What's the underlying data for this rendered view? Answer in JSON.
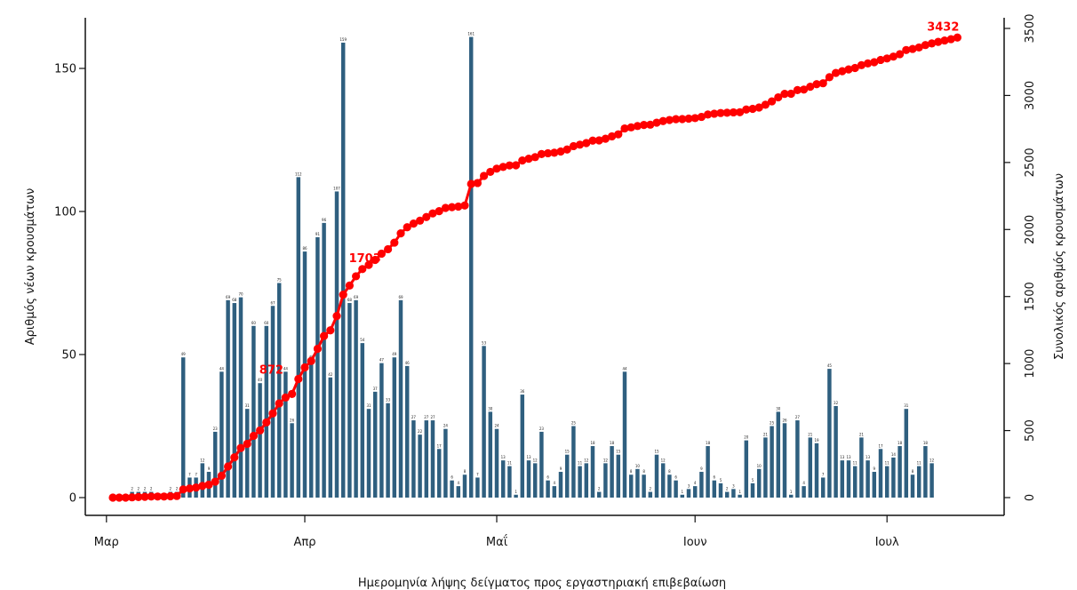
{
  "chart_data": {
    "type": "bar",
    "title": "",
    "xlabel": "Ημερομηνία λήψης δείγματος προς εργαστηριακή επιβεβαίωση",
    "ylabel": "Αριθμός νέων κρουσμάτων",
    "y2label": "Συνολικός αριθμός κρουσμάτων",
    "ylim": [
      0,
      165
    ],
    "y2lim": [
      0,
      3500
    ],
    "yticks": [
      "0",
      "50",
      "100",
      "150"
    ],
    "y2ticks": [
      "0",
      "500",
      "1000",
      "1500",
      "2000",
      "2500",
      "3000",
      "3500"
    ],
    "x_tick_labels": [
      {
        "label": "Μαρ",
        "day": 3
      },
      {
        "label": "Απρ",
        "day": 34
      },
      {
        "label": "Μαΐ",
        "day": 64
      },
      {
        "label": "Ιουν",
        "day": 95
      },
      {
        "label": "Ιουλ",
        "day": 125
      }
    ],
    "series": [
      {
        "kind": "bars",
        "color": "#2f5f7f",
        "start_day": 7,
        "values": [
          2,
          2,
          2,
          2,
          0,
          0,
          2,
          2,
          49,
          7,
          7,
          12,
          9,
          23,
          44,
          69,
          68,
          70,
          31,
          60,
          40,
          60,
          67,
          75,
          44,
          26,
          112,
          86,
          48,
          91,
          96,
          42,
          107,
          159,
          68,
          69,
          54,
          31,
          37,
          47,
          33,
          49,
          69,
          46,
          27,
          22,
          27,
          27,
          17,
          24,
          6,
          4,
          8,
          161,
          7,
          53,
          30,
          24,
          13,
          11,
          1,
          36,
          13,
          12,
          23,
          6,
          4,
          9,
          15,
          25,
          11,
          12,
          18,
          2,
          12,
          18,
          15,
          44,
          8,
          10,
          8,
          2,
          15,
          12,
          8,
          6,
          1,
          3,
          4,
          9,
          18,
          6,
          5,
          2,
          3,
          1,
          20,
          5,
          10,
          21,
          25,
          30,
          26,
          1,
          27,
          4,
          21,
          19,
          7,
          45,
          32,
          13,
          13,
          11,
          21,
          13,
          9,
          17,
          11,
          14,
          18,
          31,
          8,
          11,
          18,
          12
        ]
      },
      {
        "kind": "cumulative-line",
        "color": "#ff0000",
        "start_day": 4,
        "points": [
          [
            4,
            0
          ],
          [
            5,
            0
          ],
          [
            6,
            0
          ],
          [
            7,
            2
          ],
          [
            8,
            4
          ],
          [
            9,
            6
          ],
          [
            10,
            8
          ],
          [
            11,
            8
          ],
          [
            12,
            8
          ],
          [
            13,
            10
          ],
          [
            14,
            12
          ],
          [
            15,
            61
          ],
          [
            16,
            68
          ],
          [
            17,
            75
          ],
          [
            18,
            87
          ],
          [
            19,
            96
          ],
          [
            20,
            119
          ],
          [
            21,
            163
          ],
          [
            22,
            232
          ],
          [
            23,
            300
          ],
          [
            24,
            370
          ],
          [
            25,
            401
          ],
          [
            26,
            461
          ],
          [
            27,
            501
          ],
          [
            28,
            561
          ],
          [
            29,
            628
          ],
          [
            30,
            703
          ],
          [
            31,
            747
          ],
          [
            32,
            773
          ],
          [
            33,
            885
          ],
          [
            34,
            971
          ],
          [
            35,
            1019
          ],
          [
            36,
            1110
          ],
          [
            37,
            1206
          ],
          [
            38,
            1248
          ],
          [
            39,
            1355
          ],
          [
            40,
            1514
          ],
          [
            41,
            1582
          ],
          [
            42,
            1651
          ],
          [
            43,
            1705
          ],
          [
            44,
            1736
          ],
          [
            45,
            1773
          ],
          [
            46,
            1820
          ],
          [
            47,
            1853
          ],
          [
            48,
            1902
          ],
          [
            49,
            1971
          ],
          [
            50,
            2017
          ],
          [
            51,
            2044
          ],
          [
            52,
            2066
          ],
          [
            53,
            2093
          ],
          [
            54,
            2120
          ],
          [
            55,
            2137
          ],
          [
            56,
            2161
          ],
          [
            57,
            2167
          ],
          [
            58,
            2171
          ],
          [
            59,
            2179
          ],
          [
            60,
            2340
          ],
          [
            61,
            2347
          ],
          [
            62,
            2400
          ],
          [
            63,
            2430
          ],
          [
            64,
            2454
          ],
          [
            65,
            2467
          ],
          [
            66,
            2478
          ],
          [
            67,
            2479
          ],
          [
            68,
            2515
          ],
          [
            69,
            2528
          ],
          [
            70,
            2540
          ],
          [
            71,
            2563
          ],
          [
            72,
            2569
          ],
          [
            73,
            2573
          ],
          [
            74,
            2582
          ],
          [
            75,
            2597
          ],
          [
            76,
            2622
          ],
          [
            77,
            2633
          ],
          [
            78,
            2645
          ],
          [
            79,
            2663
          ],
          [
            80,
            2665
          ],
          [
            81,
            2677
          ],
          [
            82,
            2695
          ],
          [
            83,
            2710
          ],
          [
            84,
            2754
          ],
          [
            85,
            2762
          ],
          [
            86,
            2772
          ],
          [
            87,
            2780
          ],
          [
            88,
            2782
          ],
          [
            89,
            2797
          ],
          [
            90,
            2809
          ],
          [
            91,
            2817
          ],
          [
            92,
            2823
          ],
          [
            93,
            2824
          ],
          [
            94,
            2827
          ],
          [
            95,
            2831
          ],
          [
            96,
            2840
          ],
          [
            97,
            2858
          ],
          [
            98,
            2864
          ],
          [
            99,
            2869
          ],
          [
            100,
            2871
          ],
          [
            101,
            2874
          ],
          [
            102,
            2875
          ],
          [
            103,
            2895
          ],
          [
            104,
            2900
          ],
          [
            105,
            2910
          ],
          [
            106,
            2931
          ],
          [
            107,
            2956
          ],
          [
            108,
            2986
          ],
          [
            109,
            3012
          ],
          [
            110,
            3013
          ],
          [
            111,
            3040
          ],
          [
            112,
            3044
          ],
          [
            113,
            3065
          ],
          [
            114,
            3084
          ],
          [
            115,
            3091
          ],
          [
            116,
            3136
          ],
          [
            117,
            3168
          ],
          [
            118,
            3181
          ],
          [
            119,
            3194
          ],
          [
            120,
            3205
          ],
          [
            121,
            3226
          ],
          [
            122,
            3239
          ],
          [
            123,
            3248
          ],
          [
            124,
            3265
          ],
          [
            125,
            3276
          ],
          [
            126,
            3290
          ],
          [
            127,
            3308
          ],
          [
            128,
            3339
          ],
          [
            129,
            3347
          ],
          [
            130,
            3358
          ],
          [
            131,
            3376
          ],
          [
            132,
            3388
          ],
          [
            133,
            3400
          ],
          [
            134,
            3410
          ],
          [
            135,
            3420
          ],
          [
            136,
            3432
          ]
        ]
      }
    ],
    "cumulative_labels": [
      {
        "day": 28,
        "value": 872,
        "text": "872"
      },
      {
        "day": 42,
        "value": 1703,
        "text": "1703"
      },
      {
        "day": 136,
        "value": 3432,
        "text": "3432"
      }
    ]
  }
}
